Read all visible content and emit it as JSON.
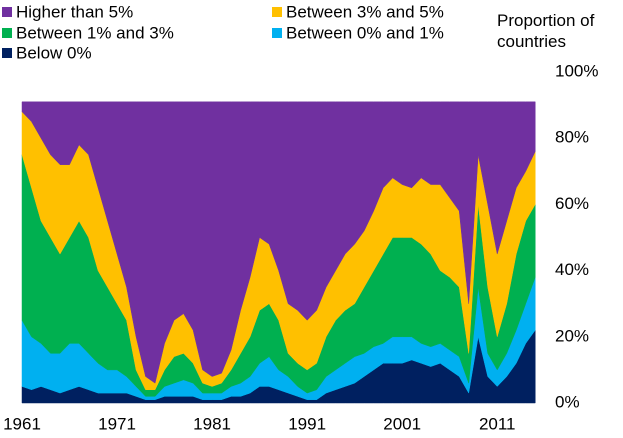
{
  "chart_data": {
    "type": "stacked_area",
    "y_label": "Proportion of countries",
    "x": [
      1961,
      1962,
      1963,
      1964,
      1965,
      1966,
      1967,
      1968,
      1969,
      1970,
      1971,
      1972,
      1973,
      1974,
      1975,
      1976,
      1977,
      1978,
      1979,
      1980,
      1981,
      1982,
      1983,
      1984,
      1985,
      1986,
      1987,
      1988,
      1989,
      1990,
      1991,
      1992,
      1993,
      1994,
      1995,
      1996,
      1997,
      1998,
      1999,
      2000,
      2001,
      2002,
      2003,
      2004,
      2005,
      2006,
      2007,
      2008,
      2009,
      2010,
      2011,
      2012,
      2013,
      2014,
      2015
    ],
    "xlim": [
      1961,
      2015.5
    ],
    "xticks": [
      1961,
      1971,
      1981,
      1991,
      2001,
      2011
    ],
    "ylim": [
      0,
      100
    ],
    "yticks": [
      {
        "value": 0,
        "label": "0%"
      },
      {
        "value": 20,
        "label": "20%"
      },
      {
        "value": 40,
        "label": "40%"
      },
      {
        "value": 60,
        "label": "60%"
      },
      {
        "value": 80,
        "label": "80%"
      },
      {
        "value": 100,
        "label": "100%"
      }
    ],
    "grid": false,
    "series": [
      {
        "name": "Higher than 5%",
        "color": "#7030a0",
        "values": [
          3,
          6,
          11,
          16,
          19,
          19,
          13,
          16,
          26,
          36,
          46,
          56,
          71,
          83,
          85,
          73,
          66,
          64,
          69,
          81,
          83,
          82,
          75,
          63,
          53,
          41,
          43,
          51,
          61,
          63,
          66,
          63,
          56,
          51,
          46,
          43,
          39,
          33,
          26,
          23,
          25,
          26,
          23,
          25,
          25,
          29,
          33,
          61,
          16,
          31,
          46,
          36,
          26,
          21,
          15
        ]
      },
      {
        "name": "Between 3% and 5%",
        "color": "#ffc000",
        "values": [
          13,
          20,
          25,
          25,
          27,
          22,
          23,
          25,
          25,
          20,
          15,
          10,
          10,
          4,
          2,
          8,
          11,
          12,
          10,
          4,
          3,
          3,
          6,
          13,
          18,
          22,
          18,
          15,
          15,
          16,
          15,
          16,
          15,
          15,
          17,
          18,
          17,
          18,
          20,
          18,
          16,
          15,
          20,
          21,
          26,
          24,
          23,
          15,
          15,
          25,
          25,
          25,
          20,
          15,
          16
        ]
      },
      {
        "name": "Between 1% and 3%",
        "color": "#00b050",
        "values": [
          50,
          45,
          37,
          35,
          30,
          32,
          37,
          35,
          28,
          25,
          20,
          17,
          5,
          2,
          2,
          5,
          8,
          8,
          6,
          3,
          2,
          3,
          5,
          9,
          12,
          16,
          16,
          15,
          7,
          7,
          7,
          8,
          12,
          15,
          16,
          16,
          20,
          23,
          27,
          30,
          30,
          30,
          30,
          28,
          22,
          22,
          21,
          9,
          25,
          20,
          10,
          15,
          23,
          25,
          22
        ]
      },
      {
        "name": "Between 0% and 1%",
        "color": "#00b0f0",
        "values": [
          20,
          16,
          13,
          11,
          12,
          14,
          13,
          11,
          9,
          7,
          7,
          5,
          3,
          1,
          1,
          3,
          4,
          5,
          4,
          2,
          2,
          2,
          3,
          4,
          5,
          7,
          9,
          6,
          5,
          3,
          2,
          3,
          5,
          6,
          7,
          8,
          7,
          7,
          6,
          8,
          8,
          7,
          6,
          6,
          6,
          6,
          6,
          3,
          15,
          7,
          5,
          7,
          10,
          12,
          16
        ]
      },
      {
        "name": "Below 0%",
        "color": "#002060",
        "values": [
          5,
          4,
          5,
          4,
          3,
          4,
          5,
          4,
          3,
          3,
          3,
          3,
          2,
          1,
          1,
          2,
          2,
          2,
          2,
          1,
          1,
          1,
          2,
          2,
          3,
          5,
          5,
          4,
          3,
          2,
          1,
          1,
          3,
          4,
          5,
          6,
          8,
          10,
          12,
          12,
          12,
          13,
          12,
          11,
          12,
          10,
          8,
          3,
          20,
          8,
          5,
          8,
          12,
          18,
          22
        ]
      }
    ]
  }
}
